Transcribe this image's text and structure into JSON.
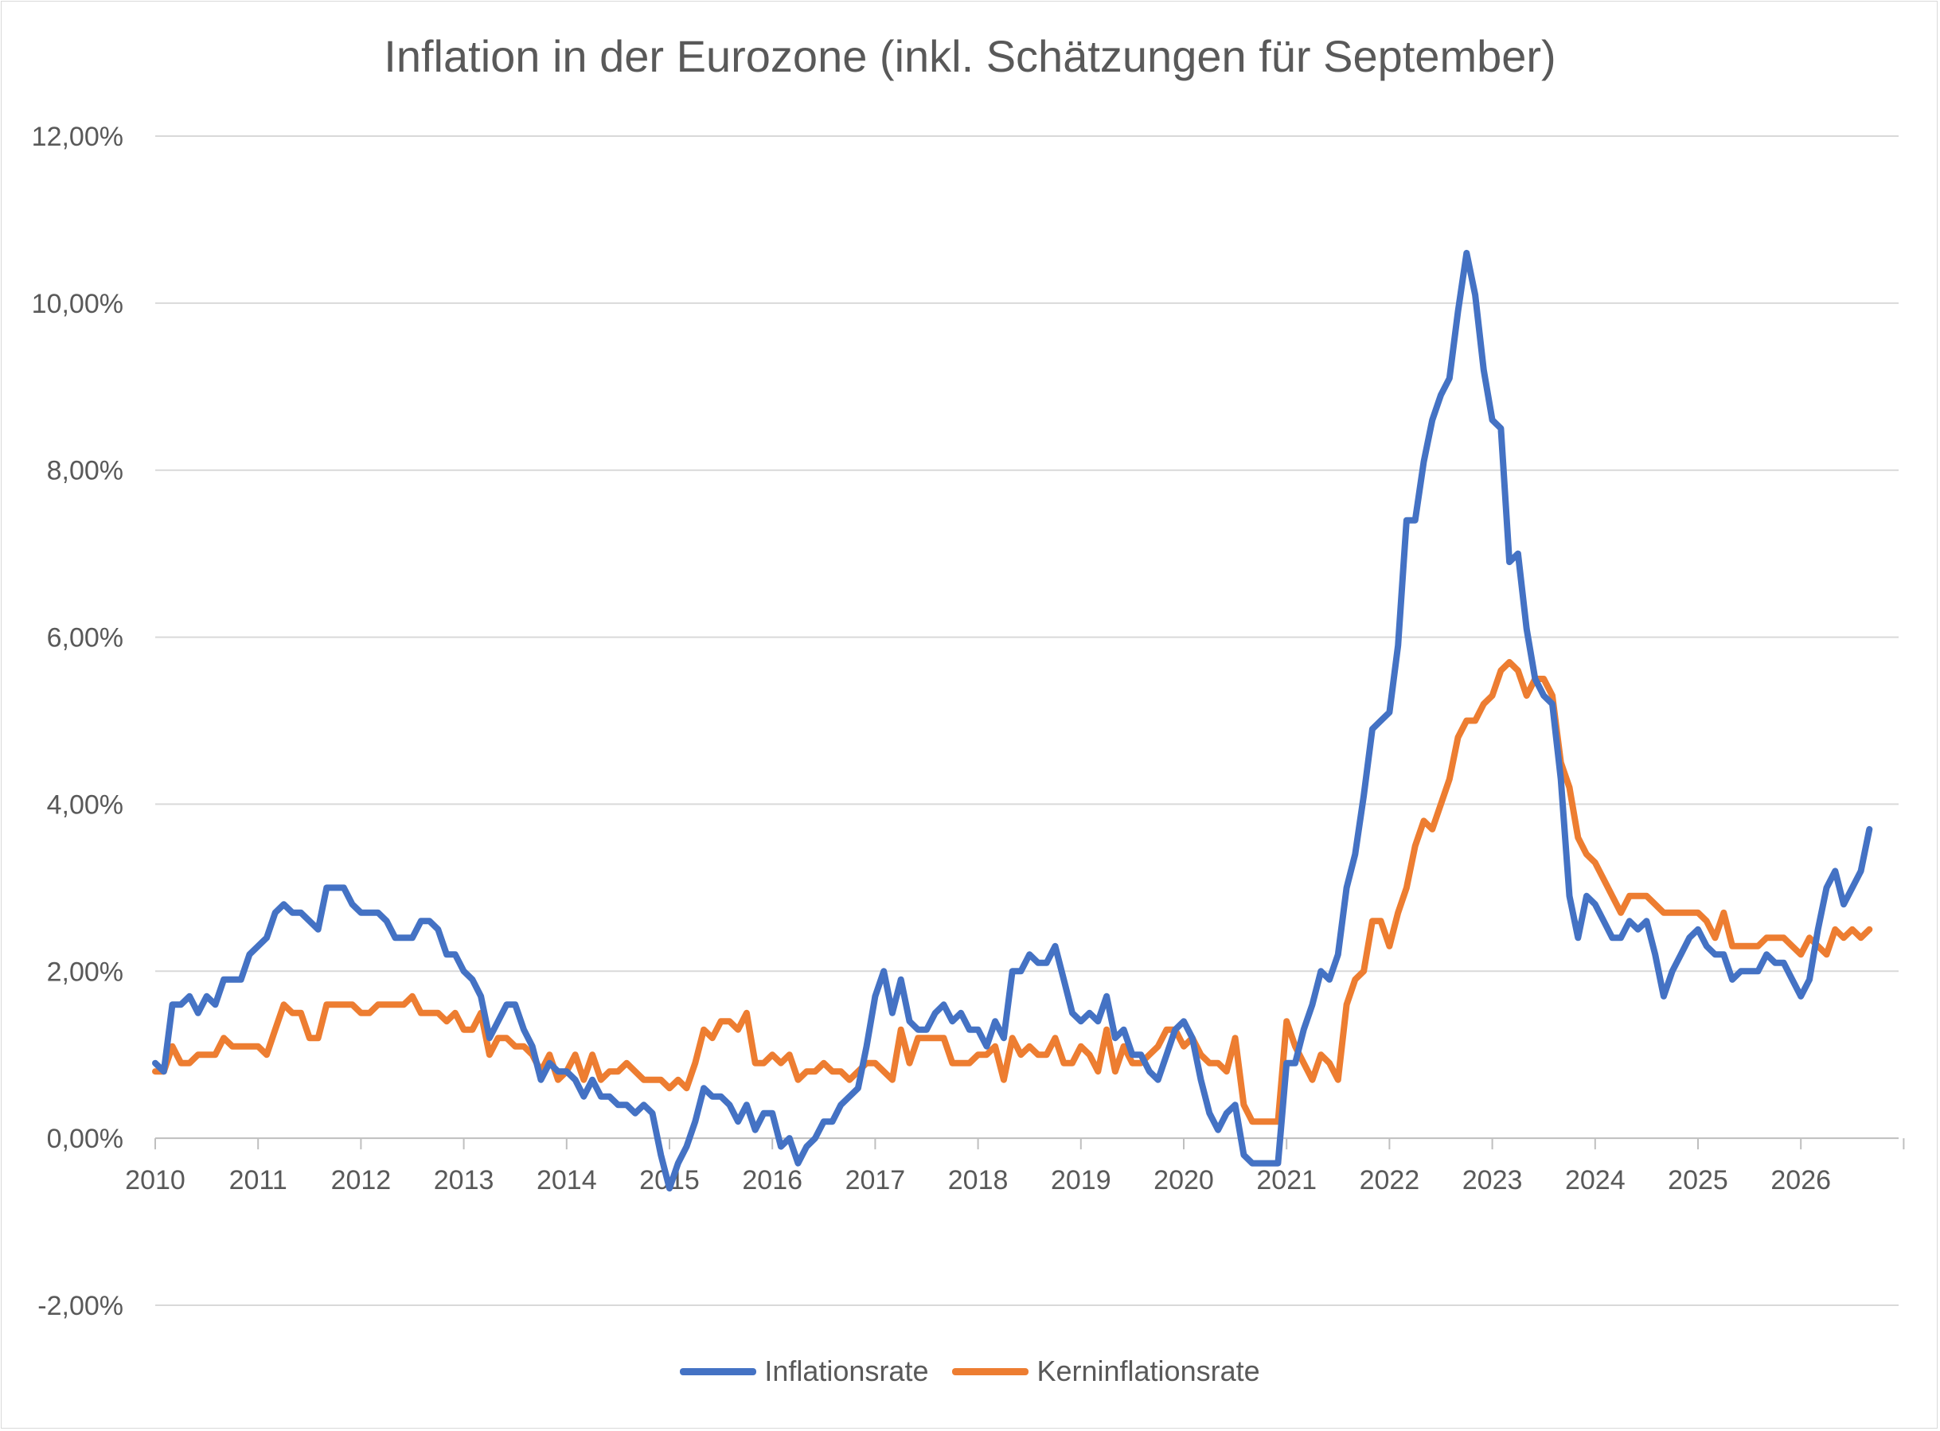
{
  "chart_data": {
    "type": "line",
    "title": "Inflation in der Eurozone (inkl. Schätzungen für September)",
    "xlabel": "",
    "ylabel": "",
    "x_start": 2010.0,
    "x_step": 0.08333333,
    "xlim": [
      2010,
      2027
    ],
    "ylim": [
      -2,
      12
    ],
    "y_ticks": [
      "12,00%",
      "10,00%",
      "8,00%",
      "6,00%",
      "4,00%",
      "2,00%",
      "0,00%",
      "-2,00%"
    ],
    "y_tick_values": [
      12,
      10,
      8,
      6,
      4,
      2,
      0,
      -2
    ],
    "x_ticks": [
      "2010",
      "2011",
      "2012",
      "2013",
      "2014",
      "2015",
      "2016",
      "2017",
      "2018",
      "2019",
      "2020",
      "2021",
      "2022",
      "2023",
      "2024",
      "2025",
      "2026"
    ],
    "grid": true,
    "legend_position": "bottom",
    "series": [
      {
        "name": "Inflationsrate",
        "color": "#4472c4",
        "values": [
          0.9,
          0.8,
          1.6,
          1.6,
          1.7,
          1.5,
          1.7,
          1.6,
          1.9,
          1.9,
          1.9,
          2.2,
          2.3,
          2.4,
          2.7,
          2.8,
          2.7,
          2.7,
          2.6,
          2.5,
          3.0,
          3.0,
          3.0,
          2.8,
          2.7,
          2.7,
          2.7,
          2.6,
          2.4,
          2.4,
          2.4,
          2.6,
          2.6,
          2.5,
          2.2,
          2.2,
          2.0,
          1.9,
          1.7,
          1.2,
          1.4,
          1.6,
          1.6,
          1.3,
          1.1,
          0.7,
          0.9,
          0.8,
          0.8,
          0.7,
          0.5,
          0.7,
          0.5,
          0.5,
          0.4,
          0.4,
          0.3,
          0.4,
          0.3,
          -0.2,
          -0.6,
          -0.3,
          -0.1,
          0.2,
          0.6,
          0.5,
          0.5,
          0.4,
          0.2,
          0.4,
          0.1,
          0.3,
          0.3,
          -0.1,
          0.0,
          -0.3,
          -0.1,
          0.0,
          0.2,
          0.2,
          0.4,
          0.5,
          0.6,
          1.1,
          1.7,
          2.0,
          1.5,
          1.9,
          1.4,
          1.3,
          1.3,
          1.5,
          1.6,
          1.4,
          1.5,
          1.3,
          1.3,
          1.1,
          1.4,
          1.2,
          2.0,
          2.0,
          2.2,
          2.1,
          2.1,
          2.3,
          1.9,
          1.5,
          1.4,
          1.5,
          1.4,
          1.7,
          1.2,
          1.3,
          1.0,
          1.0,
          0.8,
          0.7,
          1.0,
          1.3,
          1.4,
          1.2,
          0.7,
          0.3,
          0.1,
          0.3,
          0.4,
          -0.2,
          -0.3,
          -0.3,
          -0.3,
          -0.3,
          0.9,
          0.9,
          1.3,
          1.6,
          2.0,
          1.9,
          2.2,
          3.0,
          3.4,
          4.1,
          4.9,
          5.0,
          5.1,
          5.9,
          7.4,
          7.4,
          8.1,
          8.6,
          8.9,
          9.1,
          9.9,
          10.6,
          10.1,
          9.2,
          8.6,
          8.5,
          6.9,
          7.0,
          6.1,
          5.5,
          5.3,
          5.2,
          4.3,
          2.9,
          2.4,
          2.9,
          2.8,
          2.6,
          2.4,
          2.4,
          2.6,
          2.5,
          2.6,
          2.2,
          1.7,
          2.0,
          2.2,
          2.4,
          2.5,
          2.3,
          2.2,
          2.2,
          1.9,
          2.0,
          2.0,
          2.0,
          2.2,
          2.1,
          2.1,
          1.9,
          1.7,
          1.9,
          2.5,
          3.0,
          3.2,
          2.8,
          3.0,
          3.2,
          3.7
        ]
      },
      {
        "name": "Kerninflationsrate",
        "color": "#ed7d31",
        "values": [
          0.8,
          0.8,
          1.1,
          0.9,
          0.9,
          1.0,
          1.0,
          1.0,
          1.2,
          1.1,
          1.1,
          1.1,
          1.1,
          1.0,
          1.3,
          1.6,
          1.5,
          1.5,
          1.2,
          1.2,
          1.6,
          1.6,
          1.6,
          1.6,
          1.5,
          1.5,
          1.6,
          1.6,
          1.6,
          1.6,
          1.7,
          1.5,
          1.5,
          1.5,
          1.4,
          1.5,
          1.3,
          1.3,
          1.5,
          1.0,
          1.2,
          1.2,
          1.1,
          1.1,
          1.0,
          0.8,
          1.0,
          0.7,
          0.8,
          1.0,
          0.7,
          1.0,
          0.7,
          0.8,
          0.8,
          0.9,
          0.8,
          0.7,
          0.7,
          0.7,
          0.6,
          0.7,
          0.6,
          0.9,
          1.3,
          1.2,
          1.4,
          1.4,
          1.3,
          1.5,
          0.9,
          0.9,
          1.0,
          0.9,
          1.0,
          0.7,
          0.8,
          0.8,
          0.9,
          0.8,
          0.8,
          0.7,
          0.8,
          0.9,
          0.9,
          0.8,
          0.7,
          1.3,
          0.9,
          1.2,
          1.2,
          1.2,
          1.2,
          0.9,
          0.9,
          0.9,
          1.0,
          1.0,
          1.1,
          0.7,
          1.2,
          1.0,
          1.1,
          1.0,
          1.0,
          1.2,
          0.9,
          0.9,
          1.1,
          1.0,
          0.8,
          1.3,
          0.8,
          1.1,
          0.9,
          0.9,
          1.0,
          1.1,
          1.3,
          1.3,
          1.1,
          1.2,
          1.0,
          0.9,
          0.9,
          0.8,
          1.2,
          0.4,
          0.2,
          0.2,
          0.2,
          0.2,
          1.4,
          1.1,
          0.9,
          0.7,
          1.0,
          0.9,
          0.7,
          1.6,
          1.9,
          2.0,
          2.6,
          2.6,
          2.3,
          2.7,
          3.0,
          3.5,
          3.8,
          3.7,
          4.0,
          4.3,
          4.8,
          5.0,
          5.0,
          5.2,
          5.3,
          5.6,
          5.7,
          5.6,
          5.3,
          5.5,
          5.5,
          5.3,
          4.5,
          4.2,
          3.6,
          3.4,
          3.3,
          3.1,
          2.9,
          2.7,
          2.9,
          2.9,
          2.9,
          2.8,
          2.7,
          2.7,
          2.7,
          2.7,
          2.7,
          2.6,
          2.4,
          2.7,
          2.3,
          2.3,
          2.3,
          2.3,
          2.4,
          2.4,
          2.4,
          2.3,
          2.2,
          2.4,
          2.3,
          2.2,
          2.5,
          2.4,
          2.5,
          2.4,
          2.5
        ]
      }
    ]
  }
}
